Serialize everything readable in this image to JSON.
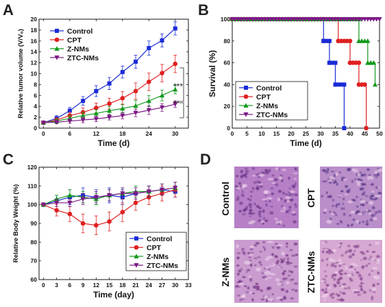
{
  "panels": {
    "A": "A",
    "B": "B",
    "C": "C",
    "D": "D"
  },
  "series_colors": {
    "Control": "#1a2bd6",
    "CPT": "#e02020",
    "Z-NMs": "#139a1c",
    "ZTC-NMs": "#7d1a86"
  },
  "chart_data": [
    {
      "panel": "A",
      "type": "line",
      "ylabel": "Relative tumor volume (V/V₀)",
      "xlabel": "Time (d)",
      "xlim": [
        -1,
        33
      ],
      "ylim": [
        0,
        20
      ],
      "xticks": [
        0,
        6,
        12,
        18,
        24,
        30
      ],
      "yticks": [
        0,
        2,
        4,
        6,
        8,
        10,
        12,
        14,
        16,
        18,
        20
      ],
      "legend_position": "top-left",
      "x": [
        0,
        3,
        6,
        9,
        12,
        15,
        18,
        21,
        24,
        27,
        30
      ],
      "series": [
        {
          "name": "Control",
          "values": [
            1.0,
            1.8,
            3.2,
            5.0,
            6.8,
            8.2,
            10.3,
            12.2,
            14.7,
            16.1,
            18.3
          ],
          "errors": [
            0.3,
            0.5,
            0.6,
            0.8,
            1.0,
            1.1,
            1.1,
            1.2,
            1.3,
            1.2,
            1.2
          ]
        },
        {
          "name": "CPT",
          "values": [
            1.0,
            1.5,
            2.3,
            2.9,
            3.7,
            4.5,
            5.5,
            6.8,
            8.5,
            10.1,
            11.8
          ],
          "errors": [
            0.2,
            0.4,
            0.6,
            0.8,
            0.9,
            1.0,
            1.2,
            1.5,
            1.6,
            1.6,
            1.6
          ]
        },
        {
          "name": "Z-NMs",
          "values": [
            1.0,
            1.3,
            1.8,
            2.3,
            2.7,
            3.2,
            3.6,
            4.1,
            5.0,
            6.0,
            7.1
          ],
          "errors": [
            0.2,
            0.4,
            0.5,
            0.6,
            0.7,
            0.8,
            0.8,
            1.0,
            1.0,
            1.0,
            0.8
          ]
        },
        {
          "name": "ZTC-NMs",
          "values": [
            1.0,
            1.1,
            1.3,
            1.5,
            1.7,
            2.0,
            2.3,
            2.8,
            3.3,
            3.8,
            4.4
          ],
          "errors": [
            0.2,
            0.3,
            0.4,
            0.5,
            0.5,
            0.5,
            0.6,
            0.7,
            0.8,
            0.7,
            0.6
          ]
        }
      ],
      "annotations": [
        "***",
        "**"
      ]
    },
    {
      "panel": "B",
      "type": "line",
      "ylabel": "Survival (%)",
      "xlabel": "Time (d)",
      "xlim": [
        0,
        50
      ],
      "ylim": [
        0,
        100
      ],
      "xticks": [
        0,
        5,
        10,
        15,
        20,
        25,
        30,
        35,
        40,
        45,
        50
      ],
      "yticks": [
        0,
        20,
        40,
        60,
        80,
        100
      ],
      "legend_position": "bottom-left",
      "series": [
        {
          "name": "Control",
          "x": [
            0,
            31,
            31,
            33,
            33,
            35,
            35,
            38,
            38
          ],
          "values": [
            100,
            100,
            80,
            80,
            60,
            60,
            40,
            40,
            0
          ]
        },
        {
          "name": "CPT",
          "x": [
            0,
            36,
            36,
            40,
            40,
            43,
            43,
            45.5,
            45.5
          ],
          "values": [
            100,
            100,
            80,
            80,
            60,
            60,
            40,
            40,
            0
          ]
        },
        {
          "name": "Z-NMs",
          "x": [
            0,
            43,
            43,
            46,
            46,
            48.5,
            48.5
          ],
          "values": [
            100,
            100,
            80,
            80,
            60,
            60,
            40
          ]
        },
        {
          "name": "ZTC-NMs",
          "x": [
            0,
            50
          ],
          "values": [
            100,
            100
          ]
        }
      ]
    },
    {
      "panel": "C",
      "type": "line",
      "ylabel": "Relative Body Weight (%)",
      "xlabel": "Time (day)",
      "xlim": [
        -1,
        33
      ],
      "ylim": [
        60,
        120
      ],
      "xticks": [
        0,
        3,
        6,
        9,
        12,
        15,
        18,
        21,
        24,
        27,
        30,
        33
      ],
      "yticks": [
        60,
        70,
        80,
        90,
        100,
        110,
        120
      ],
      "legend_position": "bottom-right",
      "x": [
        0,
        3,
        6,
        9,
        12,
        15,
        18,
        21,
        24,
        27,
        30
      ],
      "series": [
        {
          "name": "Control",
          "values": [
            100,
            102,
            104,
            105,
            104,
            105,
            104,
            106,
            107,
            108,
            107
          ],
          "errors": [
            0,
            3,
            4,
            4,
            4,
            4,
            4,
            3,
            3,
            3,
            3
          ]
        },
        {
          "name": "CPT",
          "values": [
            100,
            97,
            95,
            90,
            89,
            91,
            96,
            101,
            104,
            106,
            108
          ],
          "errors": [
            0,
            3,
            4,
            5,
            5,
            5,
            5,
            4,
            4,
            4,
            4
          ]
        },
        {
          "name": "Z-NMs",
          "values": [
            100,
            103,
            105,
            104,
            103,
            105,
            106,
            107,
            107,
            108,
            109
          ],
          "errors": [
            0,
            2,
            3,
            3,
            3,
            3,
            3,
            3,
            3,
            3,
            3
          ]
        },
        {
          "name": "ZTC-NMs",
          "values": [
            100,
            101,
            101,
            103,
            104,
            105,
            106,
            106,
            107,
            108,
            109
          ],
          "errors": [
            0,
            2,
            2,
            3,
            3,
            3,
            3,
            3,
            3,
            3,
            3
          ]
        }
      ]
    }
  ],
  "histology": {
    "labels": [
      "Control",
      "CPT",
      "Z-NMs",
      "ZTC-NMs"
    ]
  }
}
